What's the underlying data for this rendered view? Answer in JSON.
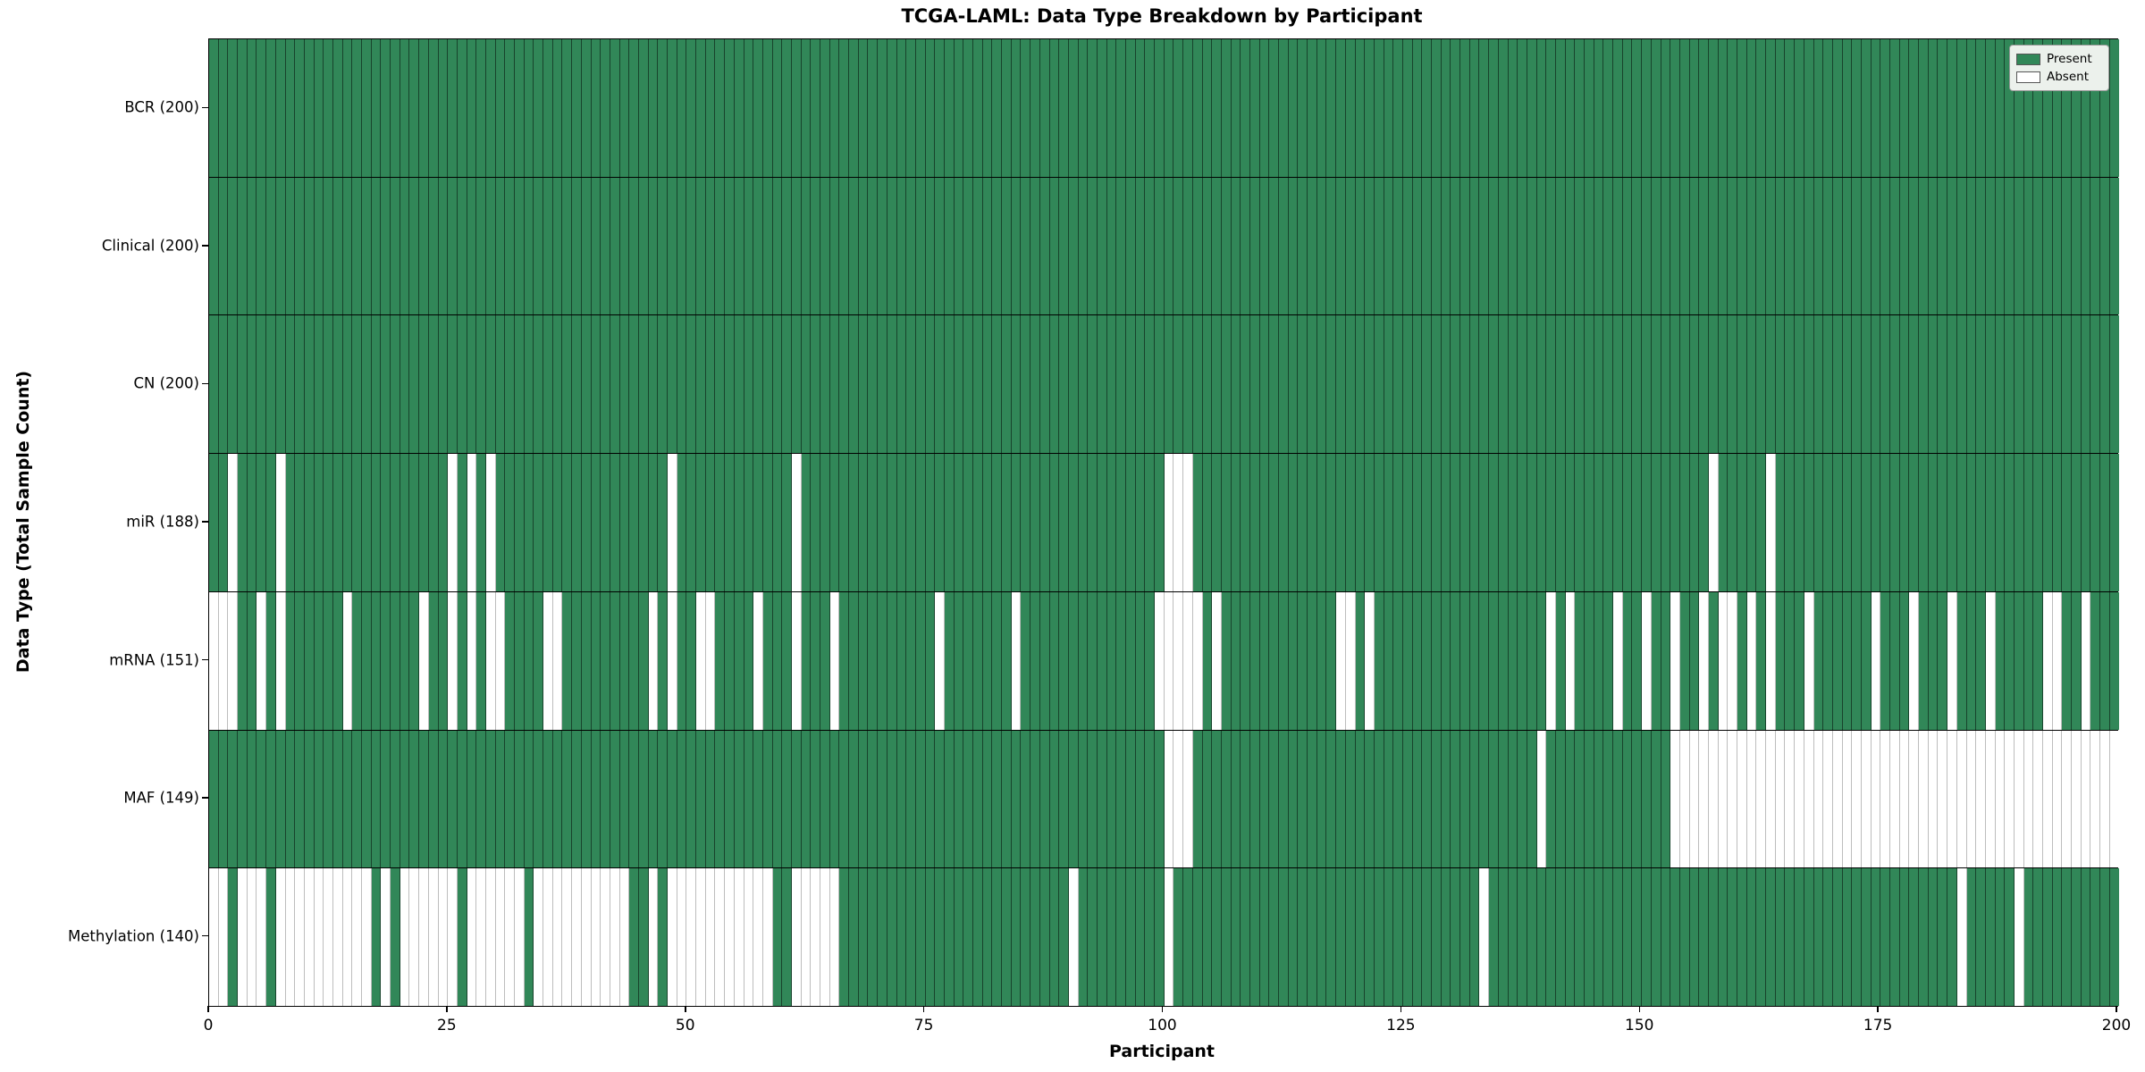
{
  "chart_data": {
    "type": "heatmap",
    "title": "TCGA-LAML: Data Type Breakdown by Participant",
    "xlabel": "Participant",
    "ylabel": "Data Type (Total Sample Count)",
    "x_ticks": [
      0,
      25,
      50,
      75,
      100,
      125,
      150,
      175,
      200
    ],
    "n_participants": 200,
    "xlim": [
      0,
      200
    ],
    "grid": "cell-edges",
    "legend_position": "upper-right",
    "legend": {
      "present_label": "Present",
      "absent_label": "Absent"
    },
    "colors": {
      "present": "#318758",
      "absent": "#ffffff"
    },
    "rows": [
      {
        "name": "BCR",
        "count": 200,
        "display": "BCR (200)",
        "absent": []
      },
      {
        "name": "Clinical",
        "count": 200,
        "display": "Clinical (200)",
        "absent": []
      },
      {
        "name": "CN",
        "count": 200,
        "display": "CN (200)",
        "absent": []
      },
      {
        "name": "miR",
        "count": 188,
        "display": "miR (188)",
        "absent": [
          2,
          7,
          25,
          27,
          29,
          48,
          61,
          100,
          101,
          102,
          157,
          163
        ]
      },
      {
        "name": "mRNA",
        "count": 151,
        "display": "mRNA (151)",
        "absent": [
          0,
          1,
          2,
          5,
          7,
          14,
          22,
          25,
          27,
          29,
          30,
          35,
          36,
          46,
          48,
          51,
          52,
          57,
          61,
          65,
          76,
          84,
          99,
          100,
          101,
          102,
          103,
          105,
          118,
          119,
          121,
          140,
          142,
          147,
          150,
          153,
          156,
          158,
          159,
          161,
          163,
          167,
          174,
          178,
          182,
          186,
          192,
          193,
          196
        ]
      },
      {
        "name": "MAF",
        "count": 149,
        "display": "MAF (149)",
        "absent": [
          100,
          101,
          102,
          139,
          153,
          154,
          155,
          156,
          157,
          158,
          159,
          160,
          161,
          162,
          163,
          164,
          165,
          166,
          167,
          168,
          169,
          170,
          171,
          172,
          173,
          174,
          175,
          176,
          177,
          178,
          179,
          180,
          181,
          182,
          183,
          184,
          185,
          186,
          187,
          188,
          189,
          190,
          191,
          192,
          193,
          194,
          195,
          196,
          197,
          198,
          199
        ]
      },
      {
        "name": "Methylation",
        "count": 140,
        "display": "Methylation (140)",
        "absent": [
          0,
          1,
          3,
          4,
          5,
          7,
          8,
          9,
          10,
          11,
          12,
          13,
          14,
          15,
          16,
          18,
          20,
          21,
          22,
          23,
          24,
          25,
          27,
          28,
          29,
          30,
          31,
          32,
          34,
          35,
          36,
          37,
          38,
          39,
          40,
          41,
          42,
          43,
          46,
          48,
          49,
          50,
          51,
          52,
          53,
          54,
          55,
          56,
          57,
          58,
          61,
          62,
          63,
          64,
          65,
          90,
          100,
          133,
          183,
          189
        ]
      }
    ]
  }
}
